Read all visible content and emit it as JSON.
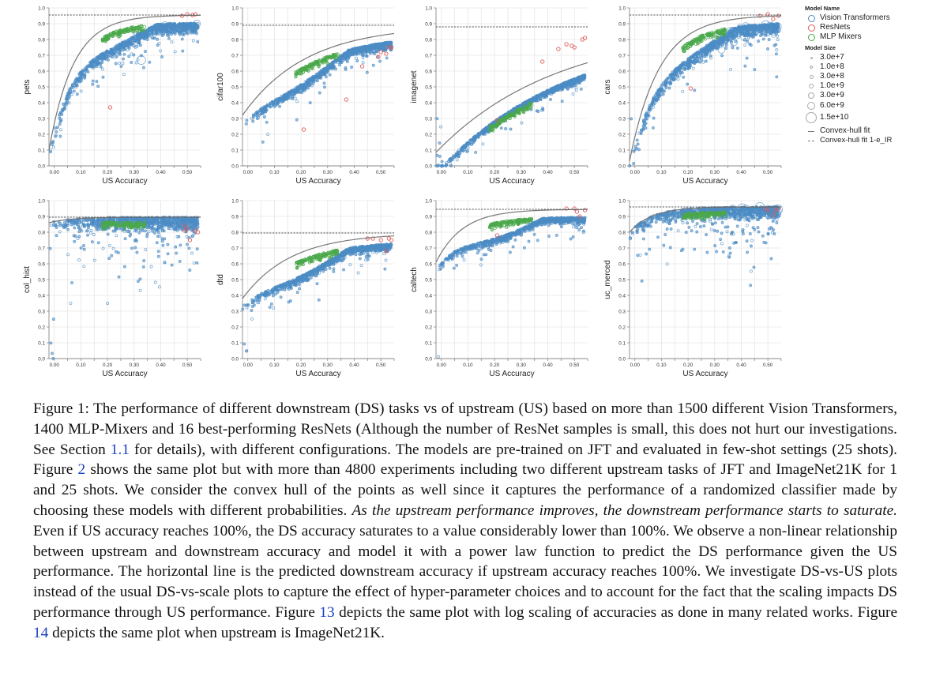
{
  "figure": {
    "legend": {
      "model_name_title": "Model Name",
      "models": [
        {
          "label": "Vision Transformers",
          "color": "#4c8cc4"
        },
        {
          "label": "ResNets",
          "color": "#e05a5a"
        },
        {
          "label": "MLP Mixers",
          "color": "#4aa84a"
        }
      ],
      "model_size_title": "Model Size",
      "sizes": [
        {
          "label": "3.0e+7",
          "px": 3
        },
        {
          "label": "1.0e+8",
          "px": 4
        },
        {
          "label": "3.0e+8",
          "px": 5
        },
        {
          "label": "1.0e+9",
          "px": 6
        },
        {
          "label": "3.0e+9",
          "px": 8
        },
        {
          "label": "6.0e+9",
          "px": 10
        },
        {
          "label": "1.5e+10",
          "px": 14
        }
      ],
      "lines": [
        {
          "label": "Convex-hull fit",
          "style": "solid"
        },
        {
          "label": "Convex-hull fit 1-e_IR",
          "style": "dashed"
        }
      ]
    }
  },
  "chart_data": [
    {
      "type": "scatter",
      "title": "",
      "xlabel": "US Accuracy",
      "ylabel": "pets",
      "xlim": [
        -0.02,
        0.55
      ],
      "ylim": [
        0.0,
        1.0
      ],
      "xticks": [
        "0.00",
        "0.10",
        "0.20",
        "0.30",
        "0.40",
        "0.50"
      ],
      "yticks": [
        "0.0",
        "0.1",
        "0.2",
        "0.3",
        "0.4",
        "0.5",
        "0.6",
        "0.7",
        "0.8",
        "0.9",
        "1.0"
      ],
      "grid": true,
      "asymptote": 0.955,
      "fit": {
        "y0": 0.1,
        "k": 11.0
      },
      "cluster": {
        "shape": "concave",
        "spread": 0.09,
        "lowest_y0": 0.0
      },
      "resnets": [
        [
          0.21,
          0.37
        ],
        [
          0.48,
          0.95
        ],
        [
          0.5,
          0.96
        ],
        [
          0.52,
          0.955
        ],
        [
          0.53,
          0.96
        ]
      ],
      "series": [
        {
          "name": "Vision Transformers"
        },
        {
          "name": "ResNets"
        },
        {
          "name": "MLP Mixers"
        }
      ]
    },
    {
      "type": "scatter",
      "title": "",
      "xlabel": "US Accuracy",
      "ylabel": "cifar100",
      "xlim": [
        -0.02,
        0.55
      ],
      "ylim": [
        0.0,
        1.0
      ],
      "xticks": [
        "0.00",
        "0.10",
        "0.20",
        "0.30",
        "0.40",
        "0.50"
      ],
      "yticks": [
        "0.0",
        "0.1",
        "0.2",
        "0.3",
        "0.4",
        "0.5",
        "0.6",
        "0.7",
        "0.8",
        "0.9",
        "1.0"
      ],
      "grid": true,
      "asymptote": 0.89,
      "fit": {
        "y0": 0.32,
        "k": 4.2
      },
      "cluster": {
        "shape": "linearish",
        "spread": 0.07,
        "lowest_y0": 0.0
      },
      "resnets": [
        [
          0.21,
          0.23
        ],
        [
          0.37,
          0.42
        ],
        [
          0.43,
          0.63
        ],
        [
          0.49,
          0.69
        ],
        [
          0.5,
          0.72
        ],
        [
          0.52,
          0.71
        ],
        [
          0.54,
          0.75
        ],
        [
          0.53,
          0.75
        ]
      ],
      "series": [
        {
          "name": "Vision Transformers"
        },
        {
          "name": "ResNets"
        },
        {
          "name": "MLP Mixers"
        }
      ]
    },
    {
      "type": "scatter",
      "title": "",
      "xlabel": "US Accuracy",
      "ylabel": "imagenet",
      "xlim": [
        -0.02,
        0.55
      ],
      "ylim": [
        0.0,
        1.0
      ],
      "xticks": [
        "0.00",
        "0.10",
        "0.20",
        "0.30",
        "0.40",
        "0.50"
      ],
      "yticks": [
        "0.0",
        "0.1",
        "0.2",
        "0.3",
        "0.4",
        "0.5",
        "0.6",
        "0.7",
        "0.8",
        "0.9",
        "1.0"
      ],
      "grid": true,
      "asymptote": 0.88,
      "fit": {
        "y0": 0.085,
        "k": 2.2
      },
      "cluster": {
        "shape": "linear",
        "spread": 0.05,
        "lowest_y0": 0.0
      },
      "resnets": [
        [
          0.21,
          0.29
        ],
        [
          0.38,
          0.66
        ],
        [
          0.44,
          0.74
        ],
        [
          0.47,
          0.77
        ],
        [
          0.49,
          0.76
        ],
        [
          0.5,
          0.75
        ],
        [
          0.53,
          0.8
        ],
        [
          0.54,
          0.81
        ]
      ],
      "series": [
        {
          "name": "Vision Transformers"
        },
        {
          "name": "ResNets"
        },
        {
          "name": "MLP Mixers"
        }
      ]
    },
    {
      "type": "scatter",
      "title": "",
      "xlabel": "US Accuracy",
      "ylabel": "cars",
      "xlim": [
        -0.02,
        0.55
      ],
      "ylim": [
        0.0,
        1.0
      ],
      "xticks": [
        "0.00",
        "0.10",
        "0.20",
        "0.30",
        "0.40",
        "0.50"
      ],
      "yticks": [
        "0.0",
        "0.1",
        "0.2",
        "0.3",
        "0.4",
        "0.5",
        "0.6",
        "0.7",
        "0.8",
        "0.9",
        "1.0"
      ],
      "grid": true,
      "asymptote": 0.955,
      "fit": {
        "y0": 0.03,
        "k": 9.0
      },
      "cluster": {
        "shape": "concave",
        "spread": 0.1,
        "lowest_y0": 0.0
      },
      "resnets": [
        [
          0.21,
          0.49
        ],
        [
          0.47,
          0.95
        ],
        [
          0.5,
          0.96
        ],
        [
          0.52,
          0.93
        ],
        [
          0.54,
          0.95
        ]
      ],
      "series": [
        {
          "name": "Vision Transformers"
        },
        {
          "name": "ResNets"
        },
        {
          "name": "MLP Mixers"
        }
      ]
    },
    {
      "type": "scatter",
      "title": "",
      "xlabel": "US Accuracy",
      "ylabel": "col_hist",
      "xlim": [
        -0.02,
        0.55
      ],
      "ylim": [
        0.0,
        1.0
      ],
      "xticks": [
        "0.00",
        "0.10",
        "0.20",
        "0.30",
        "0.40",
        "0.50"
      ],
      "yticks": [
        "0.0",
        "0.1",
        "0.2",
        "0.3",
        "0.4",
        "0.5",
        "0.6",
        "0.7",
        "0.8",
        "0.9",
        "1.0"
      ],
      "grid": true,
      "asymptote": 0.895,
      "fit": {
        "y0": 0.86,
        "k": 12.0
      },
      "cluster": {
        "shape": "flat",
        "spread": 0.12,
        "lowest_y0": 0.0
      },
      "resnets": [
        [
          0.49,
          0.84
        ],
        [
          0.49,
          0.81
        ],
        [
          0.5,
          0.82
        ],
        [
          0.51,
          0.75
        ],
        [
          0.53,
          0.81
        ],
        [
          0.54,
          0.8
        ]
      ],
      "series": [
        {
          "name": "Vision Transformers"
        },
        {
          "name": "ResNets"
        },
        {
          "name": "MLP Mixers"
        }
      ]
    },
    {
      "type": "scatter",
      "title": "",
      "xlabel": "US Accuracy",
      "ylabel": "dtd",
      "xlim": [
        -0.02,
        0.55
      ],
      "ylim": [
        0.0,
        1.0
      ],
      "xticks": [
        "0.00",
        "0.10",
        "0.20",
        "0.30",
        "0.40",
        "0.50"
      ],
      "yticks": [
        "0.0",
        "0.1",
        "0.2",
        "0.3",
        "0.4",
        "0.5",
        "0.6",
        "0.7",
        "0.8",
        "0.9",
        "1.0"
      ],
      "grid": true,
      "asymptote": 0.795,
      "fit": {
        "y0": 0.38,
        "k": 5.5
      },
      "cluster": {
        "shape": "concave",
        "spread": 0.06,
        "lowest_y0": 0.0
      },
      "resnets": [
        [
          0.45,
          0.76
        ],
        [
          0.47,
          0.76
        ],
        [
          0.5,
          0.75
        ],
        [
          0.52,
          0.68
        ],
        [
          0.53,
          0.76
        ],
        [
          0.54,
          0.75
        ]
      ],
      "series": [
        {
          "name": "Vision Transformers"
        },
        {
          "name": "ResNets"
        },
        {
          "name": "MLP Mixers"
        }
      ]
    },
    {
      "type": "scatter",
      "title": "",
      "xlabel": "US Accuracy",
      "ylabel": "caltech",
      "xlim": [
        -0.02,
        0.55
      ],
      "ylim": [
        0.0,
        1.0
      ],
      "xticks": [
        "0.00",
        "0.10",
        "0.20",
        "0.30",
        "0.40",
        "0.50"
      ],
      "yticks": [
        "0.0",
        "0.1",
        "0.2",
        "0.3",
        "0.4",
        "0.5",
        "0.6",
        "0.7",
        "0.8",
        "0.9",
        "1.0"
      ],
      "grid": true,
      "asymptote": 0.945,
      "fit": {
        "y0": 0.61,
        "k": 10.0
      },
      "cluster": {
        "shape": "concave",
        "spread": 0.05,
        "lowest_y0": 0.0
      },
      "resnets": [
        [
          0.21,
          0.78
        ],
        [
          0.47,
          0.95
        ],
        [
          0.5,
          0.95
        ],
        [
          0.51,
          0.93
        ],
        [
          0.52,
          0.9
        ],
        [
          0.54,
          0.94
        ]
      ],
      "series": [
        {
          "name": "Vision Transformers"
        },
        {
          "name": "ResNets"
        },
        {
          "name": "MLP Mixers"
        }
      ]
    },
    {
      "type": "scatter",
      "title": "",
      "xlabel": "US Accuracy",
      "ylabel": "uc_merced",
      "xlim": [
        -0.02,
        0.55
      ],
      "ylim": [
        0.0,
        1.0
      ],
      "xticks": [
        "0.00",
        "0.10",
        "0.20",
        "0.30",
        "0.40",
        "0.50"
      ],
      "yticks": [
        "0.0",
        "0.1",
        "0.2",
        "0.3",
        "0.4",
        "0.5",
        "0.6",
        "0.7",
        "0.8",
        "0.9",
        "1.0"
      ],
      "grid": true,
      "asymptote": 0.96,
      "fit": {
        "y0": 0.8,
        "k": 12.0
      },
      "cluster": {
        "shape": "flat",
        "spread": 0.1,
        "lowest_y0": 0.0
      },
      "resnets": [
        [
          0.49,
          0.95
        ],
        [
          0.5,
          0.94
        ],
        [
          0.52,
          0.91
        ],
        [
          0.53,
          0.94
        ],
        [
          0.54,
          0.95
        ]
      ],
      "series": [
        {
          "name": "Vision Transformers"
        },
        {
          "name": "ResNets"
        },
        {
          "name": "MLP Mixers"
        }
      ]
    }
  ],
  "caption": {
    "segments": [
      {
        "t": "Figure 1: The performance of different downstream (DS) tasks vs of upstream (US) based on more than 1500 different Vision Transformers, 1400 MLP-Mixers and 16 best-performing ResNets (Although the number of ResNet samples is small, this does not hurt our investigations. See Section "
      },
      {
        "t": "1.1",
        "ref": true
      },
      {
        "t": " for details), with different configurations. The models are pre-trained on JFT and evaluated in few-shot settings (25 shots). Figure "
      },
      {
        "t": "2",
        "ref": true
      },
      {
        "t": " shows the same plot but with more than 4800 experiments including two different upstream tasks of JFT and ImageNet21K for 1 and 25 shots. We consider the convex hull of the points as well since it captures the performance of a randomized classifier made by choosing these models with different probabilities. "
      },
      {
        "t": "As the upstream performance improves, the downstream performance starts to saturate.",
        "italic": true
      },
      {
        "t": " Even if US accuracy reaches 100%, the DS accuracy saturates to a value considerably lower than 100%. We observe a non-linear relationship between upstream and downstream accuracy and model it with a power law function to predict the DS performance given the US performance. The horizontal line is the predicted downstream accuracy if upstream accuracy reaches 100%. We investigate DS-vs-US plots instead of the usual DS-vs-scale plots to capture the effect of hyper-parameter choices and to account for the fact that the scaling impacts DS performance through US performance. Figure "
      },
      {
        "t": "13",
        "ref": true
      },
      {
        "t": " depicts the same plot with log scaling of accuracies as done in many related works. Figure "
      },
      {
        "t": "14",
        "ref": true
      },
      {
        "t": " depicts the same plot when upstream is ImageNet21K."
      }
    ]
  }
}
